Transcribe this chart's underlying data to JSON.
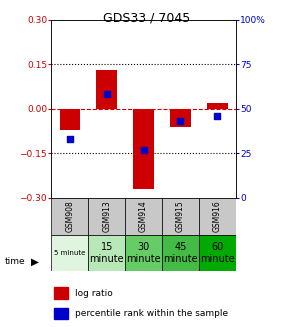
{
  "title": "GDS33 / 7045",
  "samples": [
    "GSM908",
    "GSM913",
    "GSM914",
    "GSM915",
    "GSM916"
  ],
  "time_labels_display": [
    "5 minute",
    "15\nminute",
    "30\nminute",
    "45\nminute",
    "60\nminute"
  ],
  "time_colors": [
    "#e0f5e0",
    "#b8e8b8",
    "#66cc66",
    "#44bb44",
    "#00aa00"
  ],
  "log_ratios": [
    -0.07,
    0.13,
    -0.27,
    -0.06,
    0.02
  ],
  "percentile_ranks": [
    33,
    58,
    27,
    43,
    46
  ],
  "ylim": [
    -0.3,
    0.3
  ],
  "yticks_left": [
    -0.3,
    -0.15,
    0.0,
    0.15,
    0.3
  ],
  "yticks_right": [
    0,
    25,
    50,
    75,
    100
  ],
  "bar_color": "#cc0000",
  "dot_color": "#0000cc",
  "zero_line_color": "#cc0000",
  "grid_color": "#000000",
  "bg_color": "#ffffff",
  "left_tick_color": "#cc0000",
  "right_tick_color": "#0000cc",
  "gray_color": "#c8c8c8"
}
